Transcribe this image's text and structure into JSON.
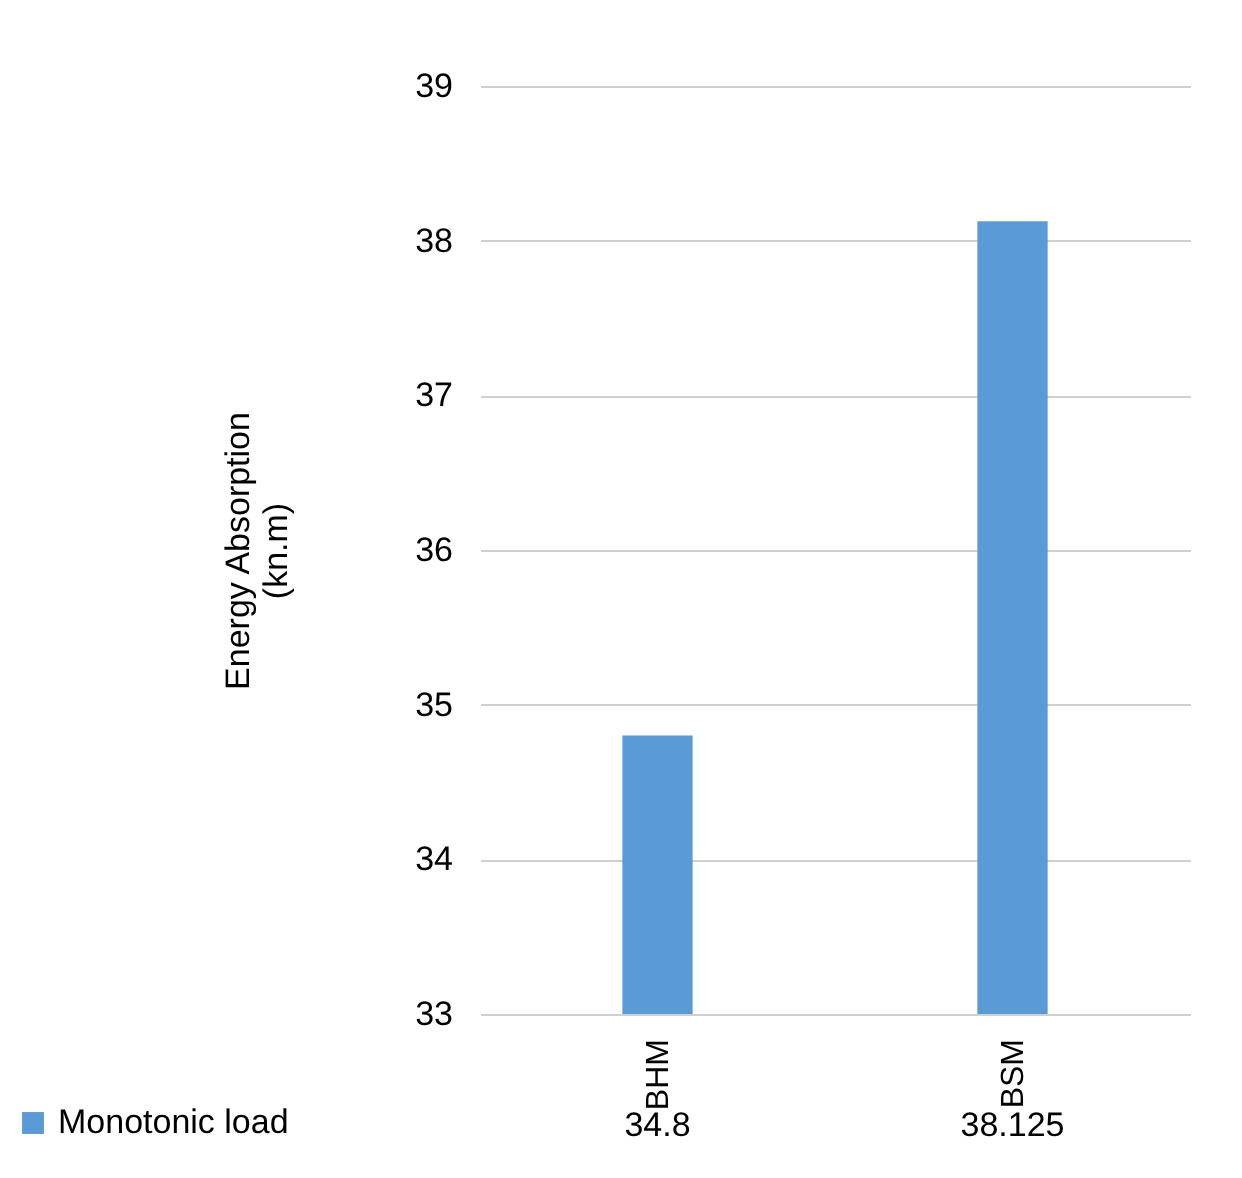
{
  "chart_data": {
    "type": "bar",
    "ylabel": "Energy Absorption\n(kn.m)",
    "categories": [
      "BHM",
      "BSM"
    ],
    "series": [
      {
        "name": "Monotonic load",
        "color": "#5b9bd5",
        "values": [
          34.8,
          38.125
        ]
      }
    ],
    "ylim": [
      33,
      39
    ],
    "yticks": [
      33,
      34,
      35,
      36,
      37,
      38,
      39
    ],
    "grid": "y",
    "legend": "bottom left",
    "data_labels": true
  }
}
